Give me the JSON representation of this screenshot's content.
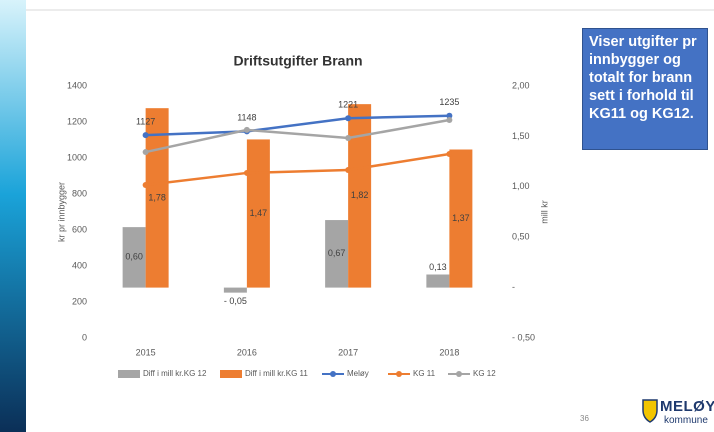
{
  "chart_data": {
    "type": "bar-line",
    "title": "Driftsutgifter Brann",
    "y_label": "kr pr innbygger",
    "y2_label": "mill kr",
    "categories": [
      "2015",
      "2016",
      "2017",
      "2018"
    ],
    "ylim": [
      0,
      1400
    ],
    "yticks": [
      0,
      200,
      400,
      600,
      800,
      1000,
      1200,
      1400
    ],
    "y2lim": [
      -0.5,
      2.0
    ],
    "y2ticks": [
      {
        "value": -0.5,
        "label": "- 0,50"
      },
      {
        "value": 0,
        "label": "-"
      },
      {
        "value": 0.5,
        "label": "0,50"
      },
      {
        "value": 1.0,
        "label": "1,00"
      },
      {
        "value": 1.5,
        "label": "1,50"
      },
      {
        "value": 2.0,
        "label": "2,00"
      }
    ],
    "series": [
      {
        "name": "Diff i mill kr.KG 12",
        "kind": "bar",
        "axis": "y2",
        "color": "#a5a5a5",
        "values": [
          0.6,
          -0.05,
          0.67,
          0.13
        ],
        "value_labels": [
          "0,60",
          "- 0,05",
          "0,67",
          "0,13"
        ]
      },
      {
        "name": "Diff i mill kr.KG 11",
        "kind": "bar",
        "axis": "y2",
        "color": "#ed7d31",
        "values": [
          1.78,
          1.47,
          1.82,
          1.37
        ],
        "value_labels": [
          "1,78",
          "1,47",
          "1,82",
          "1,37"
        ]
      },
      {
        "name": "Meløy",
        "kind": "line",
        "color": "#4472c4",
        "values": [
          1127,
          1148,
          1221,
          1235
        ],
        "show_labels": true
      },
      {
        "name": "KG 11",
        "kind": "line",
        "color": "#ed7d31",
        "values": [
          850,
          917,
          933,
          1022
        ]
      },
      {
        "name": "KG 12",
        "kind": "line",
        "color": "#a5a5a5",
        "values": [
          1033,
          1156,
          1111,
          1211
        ]
      }
    ]
  },
  "side_text": "Viser utgifter pr innbygger og totalt for brann sett i forhold til KG11 og KG12.",
  "page_number": "36",
  "logo": {
    "name": "MELØY",
    "sub": "kommune"
  }
}
